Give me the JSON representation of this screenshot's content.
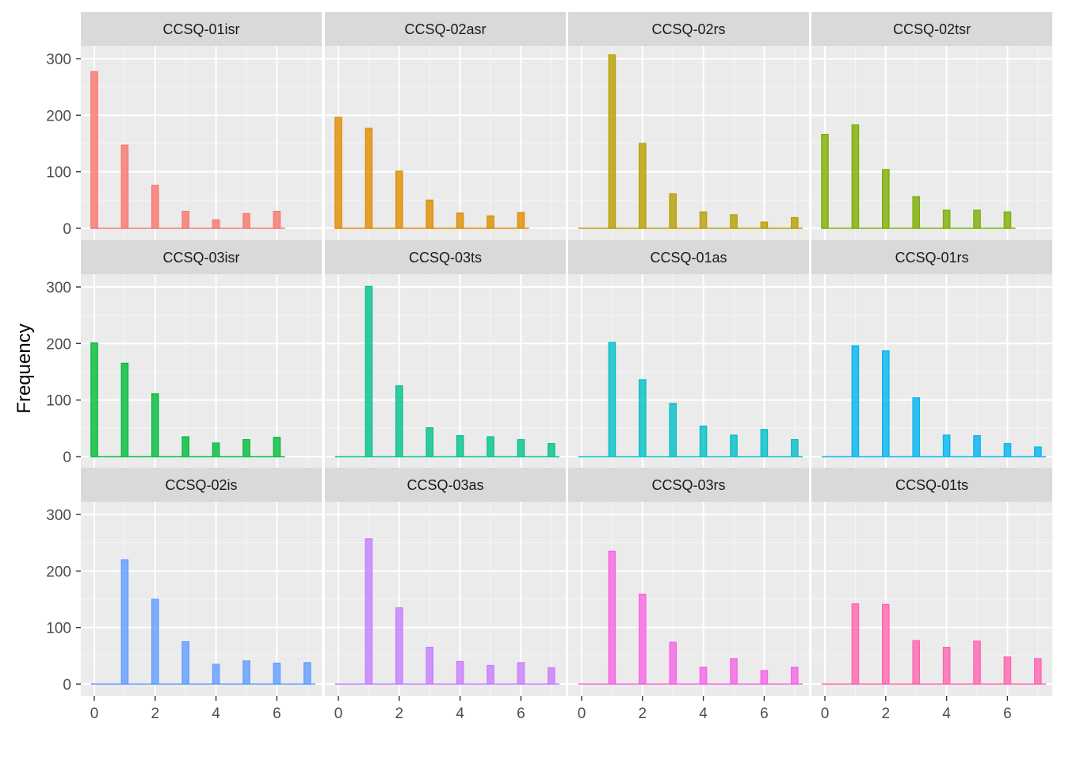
{
  "chart_data": {
    "type": "bar",
    "layout": "facet-grid",
    "ylabel": "Frequency",
    "xlabel": "",
    "ylim": [
      0,
      320
    ],
    "yticks": [
      0,
      100,
      200,
      300
    ],
    "xticks": [
      0,
      2,
      4,
      6
    ],
    "grid": true,
    "legend": "none",
    "panels": [
      {
        "name": "CCSQ-01isr",
        "color": "#F8766D",
        "x": [
          0,
          1,
          2,
          3,
          4,
          5,
          6
        ],
        "values": [
          277,
          147,
          76,
          30,
          15,
          26,
          30
        ]
      },
      {
        "name": "CCSQ-02asr",
        "color": "#DE8C00",
        "x": [
          0,
          1,
          2,
          3,
          4,
          5,
          6
        ],
        "values": [
          196,
          177,
          101,
          50,
          27,
          22,
          28
        ]
      },
      {
        "name": "CCSQ-02rs",
        "color": "#B79F00",
        "x": [
          1,
          2,
          3,
          4,
          5,
          6,
          7
        ],
        "values": [
          307,
          150,
          61,
          29,
          24,
          11,
          19
        ]
      },
      {
        "name": "CCSQ-02tsr",
        "color": "#7CAE00",
        "x": [
          0,
          1,
          2,
          3,
          4,
          5,
          6
        ],
        "values": [
          166,
          183,
          104,
          56,
          32,
          32,
          29
        ]
      },
      {
        "name": "CCSQ-03isr",
        "color": "#00BA38",
        "x": [
          0,
          1,
          2,
          3,
          4,
          5,
          6
        ],
        "values": [
          201,
          165,
          111,
          35,
          24,
          30,
          34
        ]
      },
      {
        "name": "CCSQ-03ts",
        "color": "#00C08B",
        "x": [
          1,
          2,
          3,
          4,
          5,
          6,
          7
        ],
        "values": [
          301,
          125,
          51,
          37,
          35,
          30,
          23
        ]
      },
      {
        "name": "CCSQ-01as",
        "color": "#00BFC4",
        "x": [
          1,
          2,
          3,
          4,
          5,
          6,
          7
        ],
        "values": [
          202,
          136,
          94,
          54,
          38,
          48,
          30
        ]
      },
      {
        "name": "CCSQ-01rs",
        "color": "#00B4F0",
        "x": [
          1,
          2,
          3,
          4,
          5,
          6,
          7
        ],
        "values": [
          196,
          187,
          104,
          38,
          37,
          23,
          17
        ]
      },
      {
        "name": "CCSQ-02is",
        "color": "#619CFF",
        "x": [
          1,
          2,
          3,
          4,
          5,
          6,
          7
        ],
        "values": [
          220,
          150,
          75,
          35,
          41,
          37,
          38
        ]
      },
      {
        "name": "CCSQ-03as",
        "color": "#C77CFF",
        "x": [
          1,
          2,
          3,
          4,
          5,
          6,
          7
        ],
        "values": [
          257,
          135,
          65,
          40,
          33,
          38,
          29
        ]
      },
      {
        "name": "CCSQ-03rs",
        "color": "#F564E3",
        "x": [
          1,
          2,
          3,
          4,
          5,
          6,
          7
        ],
        "values": [
          235,
          159,
          74,
          30,
          45,
          24,
          30
        ]
      },
      {
        "name": "CCSQ-01ts",
        "color": "#FF64B0",
        "x": [
          1,
          2,
          3,
          4,
          5,
          6,
          7
        ],
        "values": [
          142,
          141,
          77,
          65,
          76,
          48,
          45
        ]
      }
    ]
  }
}
